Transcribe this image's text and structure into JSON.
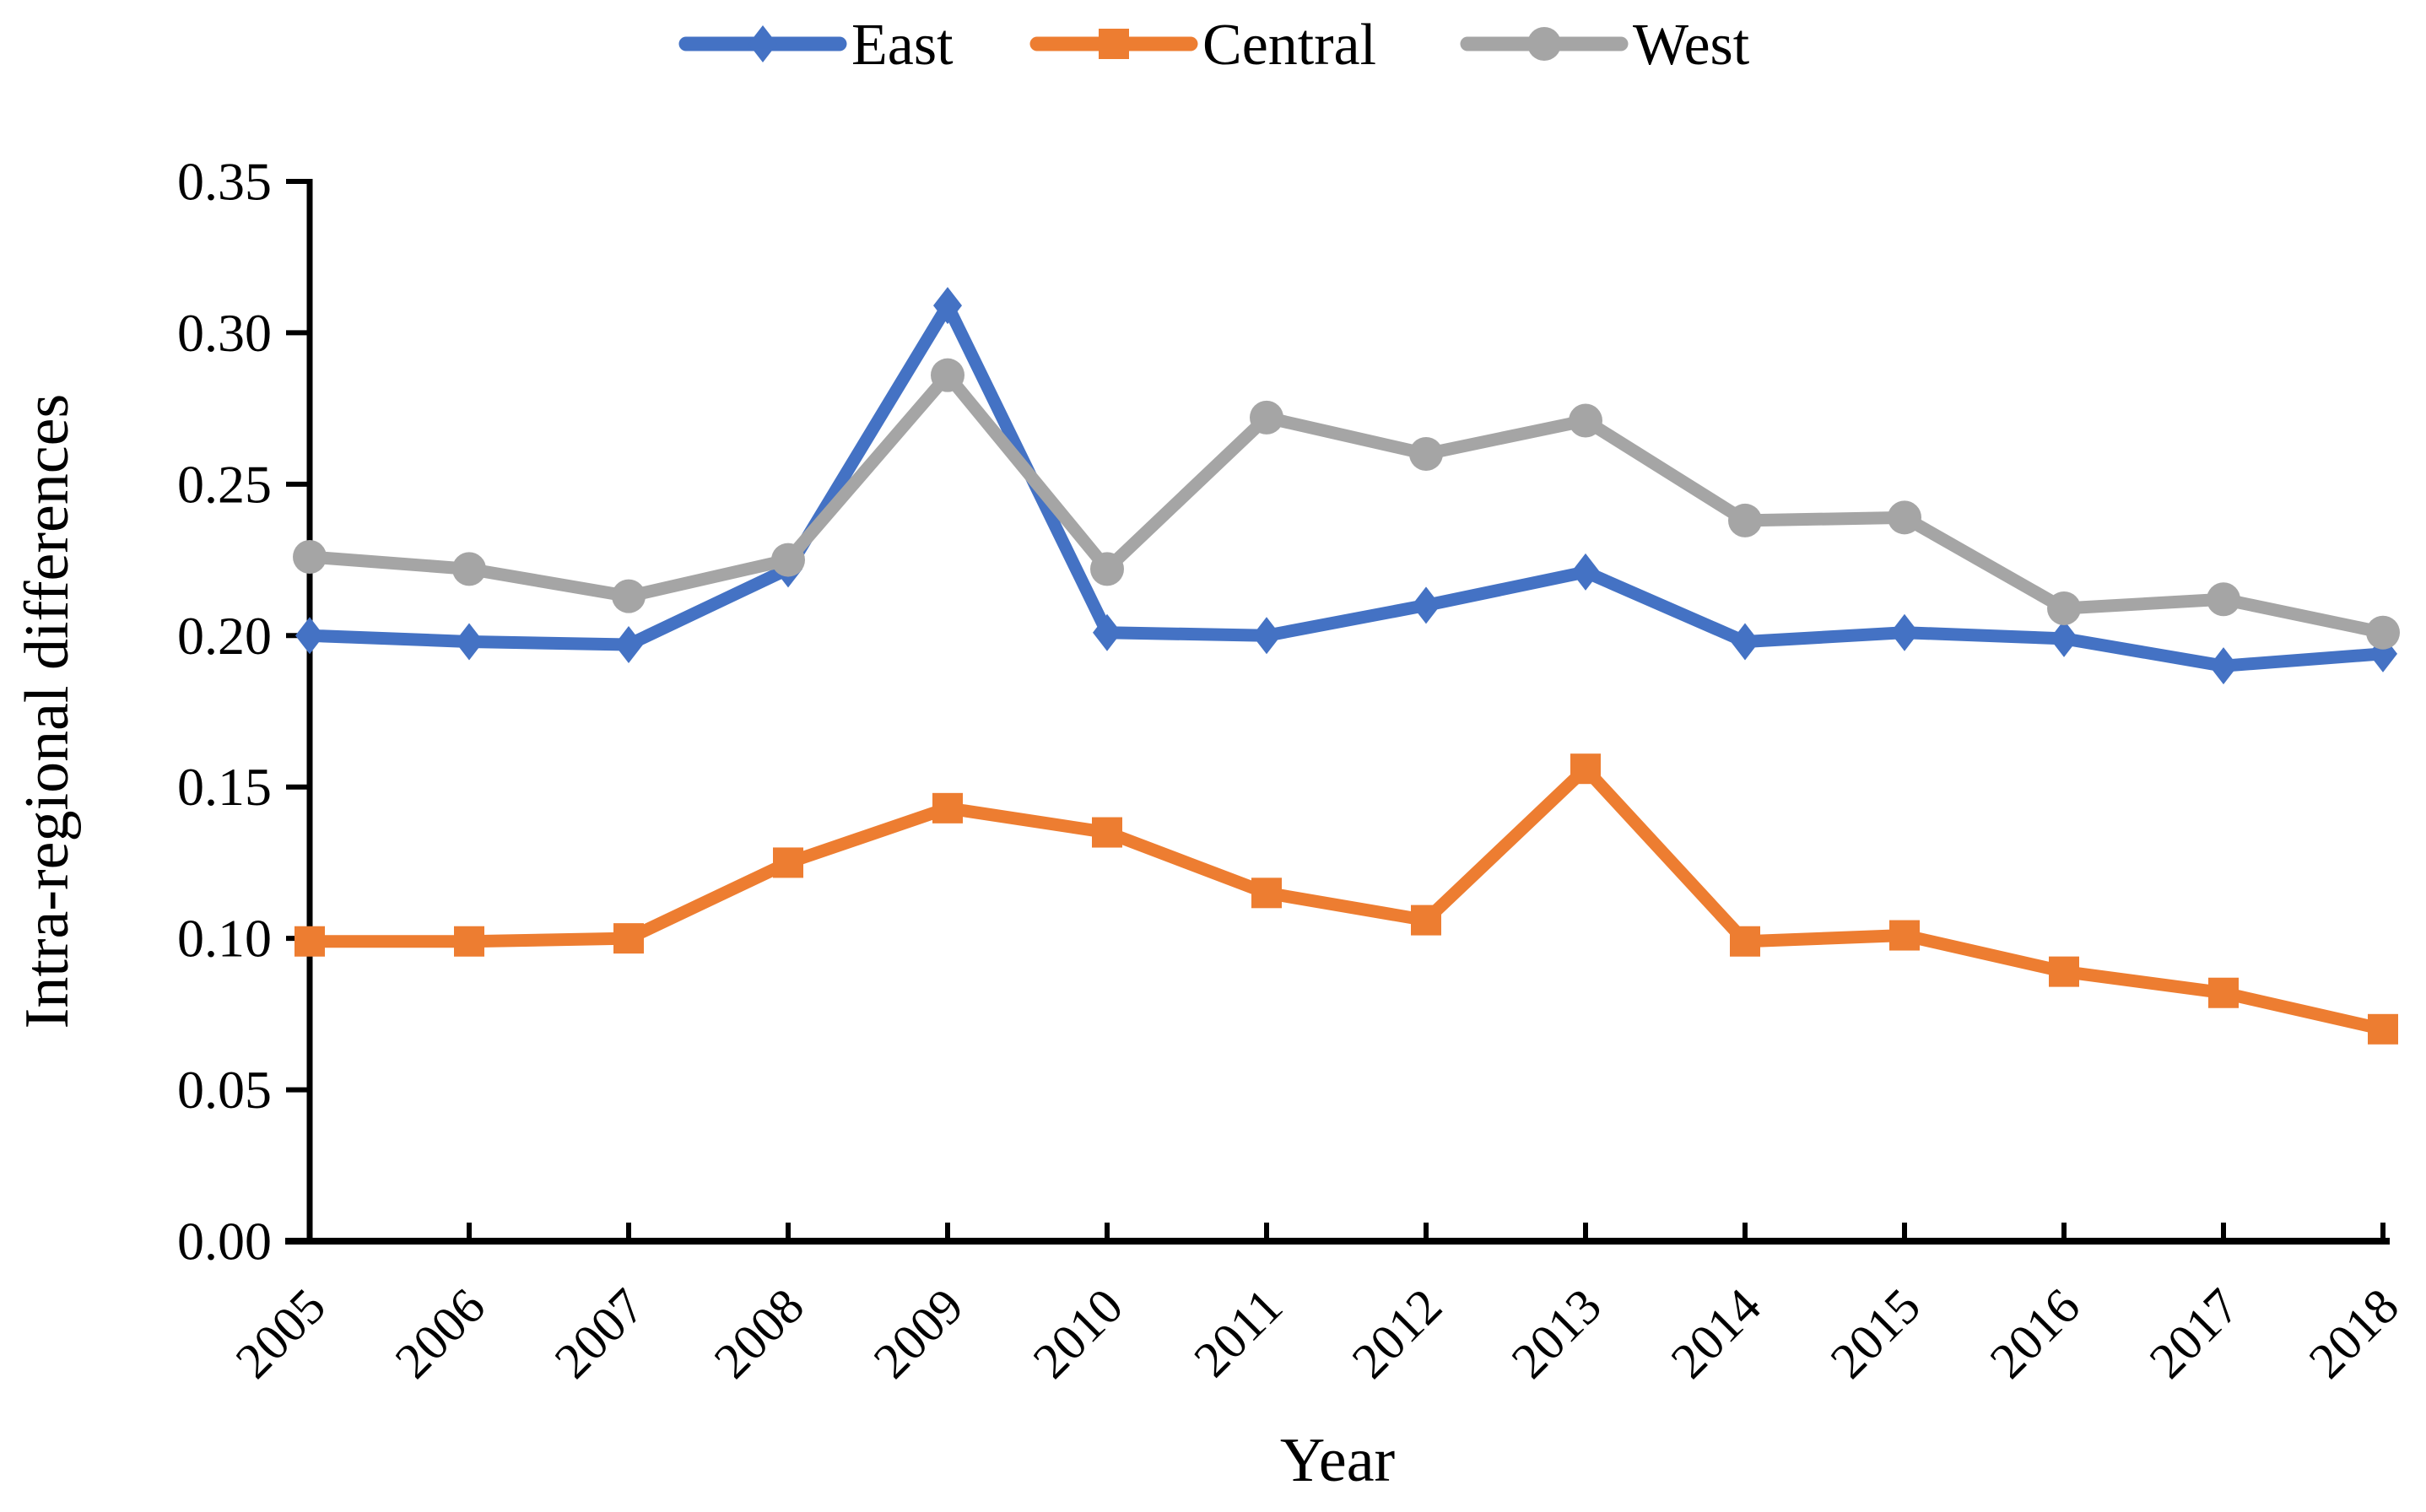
{
  "chart_data": {
    "type": "line",
    "title": "",
    "categories": [
      "2005",
      "2006",
      "2007",
      "2008",
      "2009",
      "2010",
      "2011",
      "2012",
      "2013",
      "2014",
      "2015",
      "2016",
      "2017",
      "2018"
    ],
    "series": [
      {
        "name": "East",
        "color": "#4472C4",
        "marker": "diamond",
        "values": [
          0.2,
          0.198,
          0.197,
          0.222,
          0.309,
          0.201,
          0.2,
          0.21,
          0.221,
          0.198,
          0.201,
          0.199,
          0.19,
          0.194
        ]
      },
      {
        "name": "Central",
        "color": "#ED7D31",
        "marker": "square",
        "values": [
          0.099,
          0.099,
          0.1,
          0.125,
          0.143,
          0.135,
          0.115,
          0.106,
          0.156,
          0.099,
          0.101,
          0.089,
          0.082,
          0.07
        ]
      },
      {
        "name": "West",
        "color": "#A5A5A5",
        "marker": "circle",
        "values": [
          0.226,
          0.222,
          0.213,
          0.225,
          0.286,
          0.222,
          0.272,
          0.26,
          0.271,
          0.238,
          0.239,
          0.209,
          0.212,
          0.201
        ]
      }
    ],
    "xlabel": "Year",
    "ylabel": "Intra-regional differences",
    "ylim": [
      0,
      0.35
    ],
    "y_ticks": [
      "0.00",
      "0.05",
      "0.10",
      "0.15",
      "0.20",
      "0.25",
      "0.30",
      "0.35"
    ],
    "legend_position": "top",
    "grid": false,
    "axis_color": "#000000"
  }
}
